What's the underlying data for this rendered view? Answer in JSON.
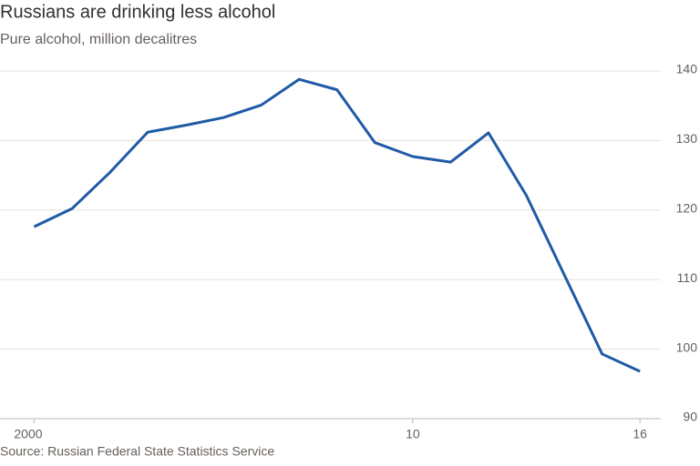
{
  "chart_data": {
    "type": "line",
    "title": "Russians are drinking less alcohol",
    "subtitle": "Pure alcohol, million decalitres",
    "source": "Source: Russian Federal State Statistics Service",
    "x": [
      2000,
      2001,
      2002,
      2003,
      2004,
      2005,
      2006,
      2007,
      2008,
      2009,
      2010,
      2011,
      2012,
      2013,
      2014,
      2015,
      2016
    ],
    "series": [
      {
        "name": "Pure alcohol",
        "color": "#1f5aa6",
        "values": [
          117.6,
          120.2,
          125.4,
          131.2,
          132.2,
          133.3,
          135.1,
          138.8,
          137.3,
          129.7,
          127.7,
          126.9,
          131.1,
          122.1,
          110.7,
          99.3,
          96.8
        ]
      }
    ],
    "xlim": [
      1999.1,
      2016.55
    ],
    "xticks": [
      2000,
      {
        "value": 2010,
        "label": "10"
      },
      {
        "value": 2016,
        "label": "16"
      }
    ],
    "ylim": [
      90,
      140
    ],
    "yticks": [
      90,
      100,
      110,
      120,
      130,
      140
    ],
    "grid": true
  }
}
